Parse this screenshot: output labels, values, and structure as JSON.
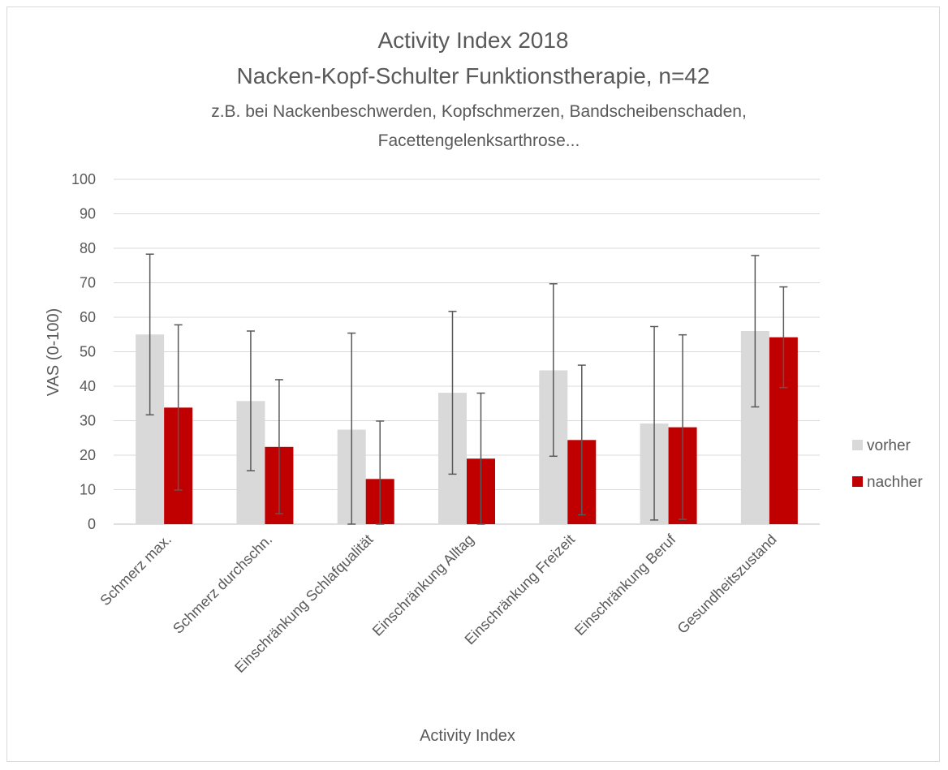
{
  "chart_data": {
    "type": "bar",
    "title_lines": [
      "Activity Index 2018",
      "Nacken-Kopf-Schulter Funktionstherapie, n=42"
    ],
    "subtitle_lines": [
      "z.B. bei Nackenbeschwerden, Kopfschmerzen, Bandscheibenschaden,",
      "Facettengelenksarthrose..."
    ],
    "xlabel": "Activity Index",
    "ylabel": "VAS (0-100)",
    "ylim": [
      0,
      100
    ],
    "yticks": [
      0,
      10,
      20,
      30,
      40,
      50,
      60,
      70,
      80,
      90,
      100
    ],
    "grid": true,
    "legend_position": "right",
    "categories": [
      "Schmerz max.",
      "Schmerz durchschn.",
      "Einschränkung Schlafqualität",
      "Einschränkung Alltag",
      "Einschränkung Freizeit",
      "Einschränkung Beruf",
      "Gesundheitszustand"
    ],
    "series": [
      {
        "name": "vorher",
        "color": "#d9d9d9",
        "values": [
          55,
          35.7,
          27.4,
          38.1,
          44.6,
          29.2,
          56
        ],
        "error_low": [
          31.7,
          15.5,
          0,
          14.5,
          19.7,
          1.2,
          34
        ],
        "error_high": [
          78.3,
          56,
          55.4,
          61.7,
          69.7,
          57.3,
          77.9
        ]
      },
      {
        "name": "nachher",
        "color": "#c00000",
        "values": [
          33.8,
          22.4,
          13.1,
          19,
          24.4,
          28.1,
          54.2
        ],
        "error_low": [
          9.9,
          3,
          0,
          0,
          2.7,
          1.4,
          39.6
        ],
        "error_high": [
          57.8,
          41.9,
          29.9,
          38,
          46.1,
          54.9,
          68.8
        ]
      }
    ]
  }
}
